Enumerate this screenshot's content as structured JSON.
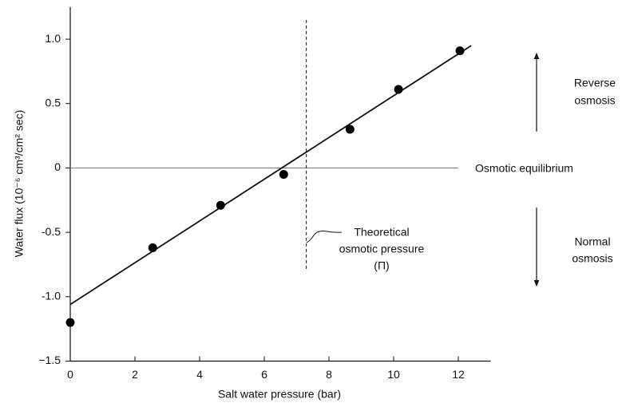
{
  "chart_data": {
    "type": "scatter",
    "xlabel": "Salt water pressure (bar)",
    "ylabel": "Water flux (10⁻⁶ cm³/cm² sec)",
    "x": [
      0,
      2.55,
      4.65,
      6.6,
      8.65,
      10.15,
      12.05
    ],
    "values": [
      -1.2,
      -0.62,
      -0.29,
      -0.05,
      0.3,
      0.61,
      0.91
    ],
    "color": "#000000",
    "fit_line": {
      "x": [
        0,
        12.4
      ],
      "y": [
        -1.06,
        0.95
      ]
    },
    "equilibrium_line": {
      "y": 0,
      "x": [
        0,
        12
      ]
    },
    "osmotic_pressure_line": {
      "x": 7.3,
      "y": [
        1.15,
        -0.8
      ]
    },
    "xlim": [
      0,
      13
    ],
    "ylim": [
      -1.5,
      1.25
    ],
    "xticks": [
      0,
      2,
      4,
      6,
      8,
      10,
      12
    ],
    "yticks": [
      {
        "value": 1,
        "label": "1.0"
      },
      0.5,
      0,
      -0.5,
      {
        "value": -1,
        "label": "-1.0"
      },
      {
        "value": -1.5,
        "label": "−1.5"
      }
    ],
    "annotations": {
      "reverse": [
        "Reverse",
        "osmosis"
      ],
      "equilibrium": "Osmotic equilibrium",
      "normal": [
        "Normal",
        "osmosis"
      ],
      "theoretical": [
        "Theoretical",
        "osmotic pressure",
        "(Π)"
      ]
    }
  }
}
